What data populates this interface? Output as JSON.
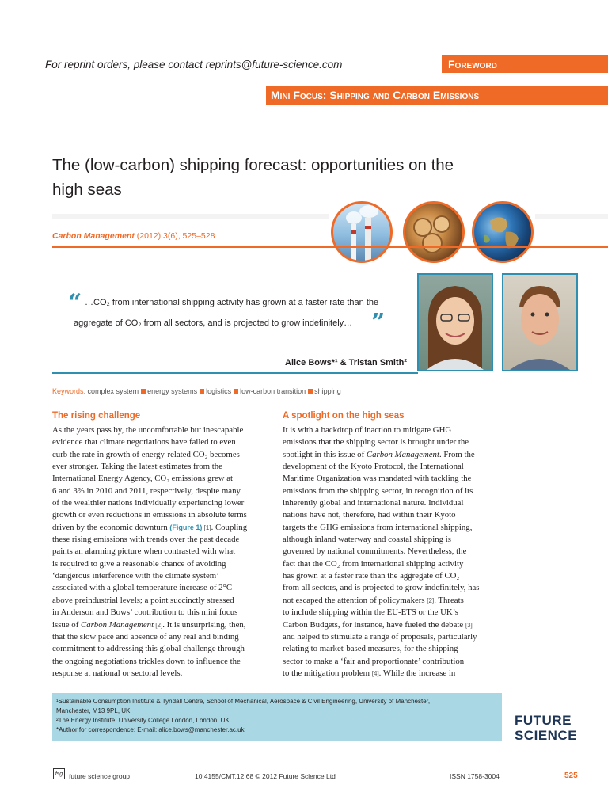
{
  "header": {
    "reprint": "For reprint orders, please contact reprints@future-science.com",
    "foreword": "Foreword",
    "mini_focus": "Mini Focus: Shipping and Carbon Emissions"
  },
  "article": {
    "title_line1": "The (low-carbon) shipping forecast: opportunities on the",
    "title_line2": "high seas",
    "journal_name": "Carbon Management",
    "journal_ref": " (2012) 3(6), 525–528"
  },
  "pullquote": {
    "line1": "…CO₂ from international shipping activity has grown at a faster rate than the",
    "line2": "aggregate of CO₂ from all sectors, and is projected to grow indefinitely…",
    "authors": "Alice Bows*¹ & Tristan Smith²"
  },
  "keywords": {
    "label": "Keywords:",
    "items": [
      "complex system",
      "energy systems",
      "logistics",
      "low-carbon transition",
      "shipping"
    ]
  },
  "left_column": {
    "heading": "The rising challenge",
    "lines": [
      "As the years pass by, the uncomfortable but inescapable",
      "evidence that climate negotiations have failed to even",
      "curb the rate in growth of energy-related CO₂ becomes",
      "ever stronger. Taking the latest estimates from the",
      "International Energy Agency, CO₂ emissions grew at",
      "6 and 3% in 2010 and 2011, respectively, despite many",
      "of the wealthier nations individually experiencing lower",
      "growth or even reductions in emissions in absolute terms"
    ],
    "line9_a": "driven by the economic downturn ",
    "line9_fig": "(Figure 1)",
    "line9_ref": " [1]",
    "line9_b": ". Coupling",
    "lines_b": [
      "these rising emissions with trends over the past decade",
      "paints an alarming picture when contrasted with what",
      "is required to give a reasonable chance of avoiding",
      "‘dangerous interference with the climate system’",
      "associated with a global temperature increase of 2°C",
      "above preindustrial levels; a point succinctly stressed",
      "in Anderson and Bows’ contribution to this mini focus"
    ],
    "line17_a": "issue of ",
    "line17_i": "Carbon Management",
    "line17_ref": " [2]",
    "line17_b": ". It is unsurprising, then,",
    "lines_c": [
      "that the slow pace and absence of any real and binding",
      "commitment to addressing this global challenge through",
      "the ongoing negotiations trickles down to influence the",
      "response at national or sectoral levels."
    ]
  },
  "right_column": {
    "heading": "A spotlight on the high seas",
    "lines_a": [
      "It is with a backdrop of inaction to mitigate GHG",
      "emissions that the shipping sector is brought under the"
    ],
    "line3_a": "spotlight in this issue of ",
    "line3_i": "Carbon Management",
    "line3_b": ". From the",
    "lines_b": [
      "development of the Kyoto Protocol, the International",
      "Maritime Organization was mandated with tackling the",
      "emissions from the shipping sector, in recognition of its",
      "inherently global and international nature. Individual",
      "nations have not, therefore, had within their Kyoto",
      "targets the GHG emissions from international shipping,",
      "although inland waterway and coastal shipping is",
      "governed by national commitments. Nevertheless, the",
      "fact that the CO₂ from international shipping activity",
      "has grown at a faster rate than the aggregate of CO₂",
      "from all sectors, and is projected to grow indefinitely, has"
    ],
    "line15_a": "not escaped the attention of policymakers ",
    "line15_ref": "[2]",
    "line15_b": ". Threats",
    "lines_c": [
      "to include shipping within the EU-ETS or the UK’s"
    ],
    "line17_a": "Carbon Budgets, for instance, have fueled the debate ",
    "line17_ref": "[3]",
    "lines_d": [
      "and helped to stimulate a range of proposals, particularly",
      "relating to market-based measures, for the shipping",
      "sector to make a ‘fair and proportionate’ contribution"
    ],
    "line21_a": "to the mitigation problem ",
    "line21_ref": "[4]",
    "line21_b": ". While the increase in"
  },
  "affiliations": [
    "¹Sustainable Consumption Institute & Tyndall Centre, School of Mechanical, Aerospace & Civil Engineering, University of Manchester,",
    "Manchester, M13 9PL, UK",
    "²The Energy Institute, University College London, London, UK",
    "*Author for correspondence: E-mail: alice.bows@manchester.ac.uk"
  ],
  "logo": {
    "line1": "FUTURE",
    "line2": "SCIENCE"
  },
  "footer": {
    "fsg_mark": "fsg",
    "group": "future science group",
    "doi": "10.4155/CMT.12.68 © 2012 Future Science Ltd",
    "issn": "ISSN 1758-3004",
    "page": "525"
  },
  "colors": {
    "accent": "#ef6a26",
    "teal": "#2e8fb0",
    "affil_bg": "#a9d8e4",
    "logo": "#1e3556"
  }
}
